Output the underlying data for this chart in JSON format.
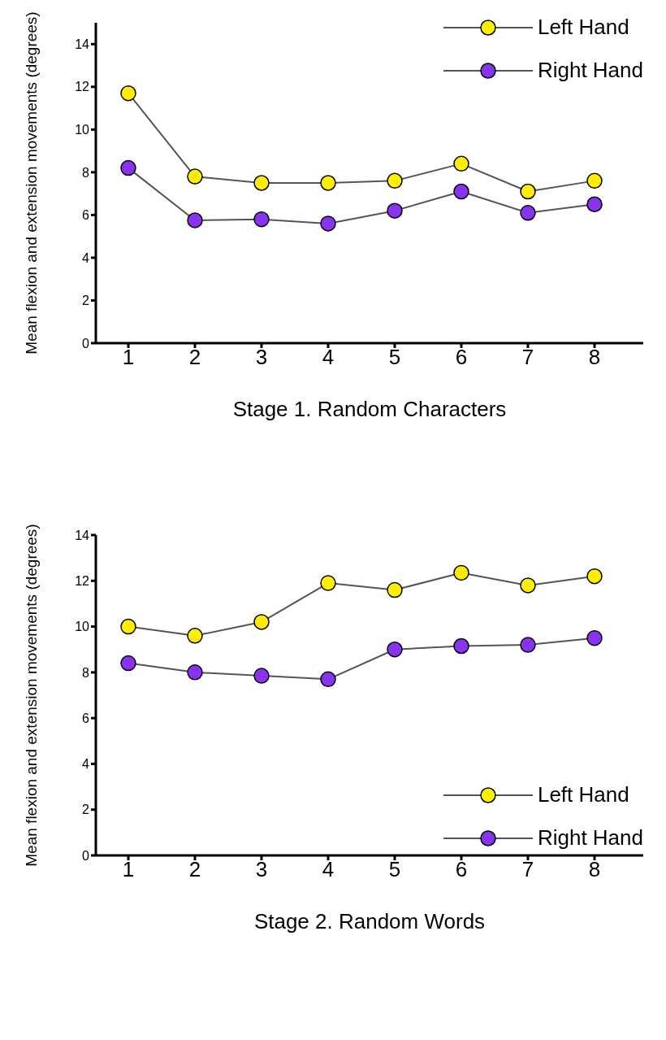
{
  "chart_data": [
    {
      "type": "line",
      "xlabel": "Stage 1. Random Characters",
      "ylabel": "Mean flexion and extension movements (degrees)",
      "categories": [
        "1",
        "2",
        "3",
        "4",
        "5",
        "6",
        "7",
        "8"
      ],
      "series": [
        {
          "name": "Left Hand",
          "color": "#ffee00",
          "values": [
            11.7,
            7.8,
            7.5,
            7.5,
            7.6,
            8.4,
            7.1,
            7.6
          ]
        },
        {
          "name": "Right Hand",
          "color": "#8833ee",
          "values": [
            8.2,
            5.75,
            5.8,
            5.6,
            6.2,
            7.1,
            6.1,
            6.5
          ]
        }
      ],
      "ylim": [
        0,
        15
      ],
      "yticks": [
        0,
        2,
        4,
        6,
        8,
        10,
        12,
        14
      ],
      "grid": false,
      "legend": "top right",
      "marker": "circle",
      "line_style": "solid"
    },
    {
      "type": "line",
      "xlabel": "Stage 2. Random Words",
      "ylabel": "Mean flexion and extension movements (degrees)",
      "categories": [
        "1",
        "2",
        "3",
        "4",
        "5",
        "6",
        "7",
        "8"
      ],
      "series": [
        {
          "name": "Left Hand",
          "color": "#ffee00",
          "values": [
            10.0,
            9.6,
            10.2,
            11.9,
            11.6,
            12.35,
            11.8,
            12.2
          ]
        },
        {
          "name": "Right Hand",
          "color": "#8833ee",
          "values": [
            8.4,
            8.0,
            7.85,
            7.7,
            9.0,
            9.15,
            9.2,
            9.5
          ]
        }
      ],
      "ylim": [
        0,
        14
      ],
      "yticks": [
        0,
        2,
        4,
        6,
        8,
        10,
        12,
        14
      ],
      "grid": false,
      "legend": "bottom right",
      "marker": "circle",
      "line_style": "solid"
    }
  ]
}
